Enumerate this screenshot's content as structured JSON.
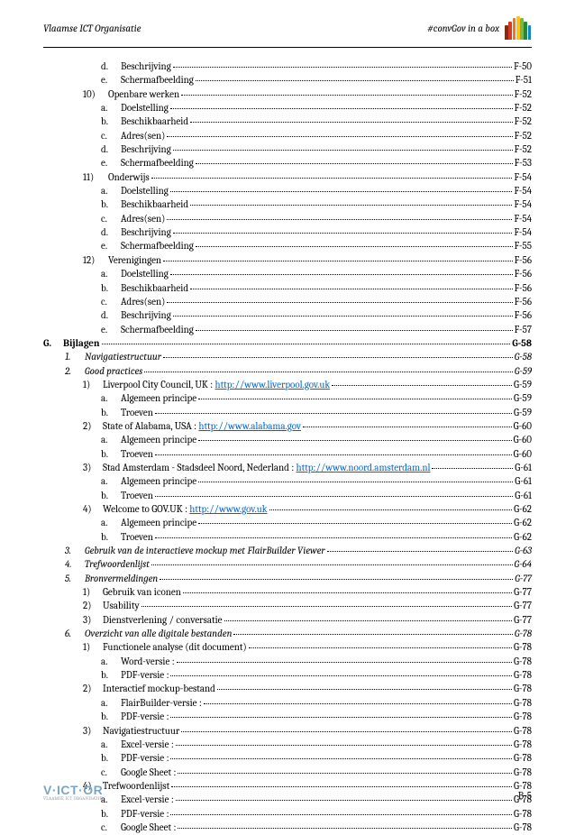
{
  "header": {
    "left": "Vlaamse ICT Organisatie",
    "right": "#convGov in a box"
  },
  "crayon_colors": [
    "#7b2d1a",
    "#d9381e",
    "#f07818",
    "#f5c518",
    "#7ab648",
    "#1f8a3b",
    "#1187c9"
  ],
  "crayon_heights": [
    16,
    20,
    24,
    26,
    24,
    20,
    16
  ],
  "toc": [
    {
      "level": 3,
      "marker": "d.",
      "text": "Beschrijving",
      "page": "F-50"
    },
    {
      "level": 3,
      "marker": "e.",
      "text": "Schermafbeelding",
      "page": "F-51"
    },
    {
      "level": 2,
      "marker": "10)",
      "text": "Openbare werken",
      "page": "F-52"
    },
    {
      "level": 3,
      "marker": "a.",
      "text": "Doelstelling",
      "page": "F-52"
    },
    {
      "level": 3,
      "marker": "b.",
      "text": "Beschikbaarheid",
      "page": "F-52"
    },
    {
      "level": 3,
      "marker": "c.",
      "text": "Adres(sen)",
      "page": "F-52"
    },
    {
      "level": 3,
      "marker": "d.",
      "text": "Beschrijving",
      "page": "F-52"
    },
    {
      "level": 3,
      "marker": "e.",
      "text": "Schermafbeelding",
      "page": "F-53"
    },
    {
      "level": 2,
      "marker": "11)",
      "text": "Onderwijs",
      "page": "F-54"
    },
    {
      "level": 3,
      "marker": "a.",
      "text": "Doelstelling",
      "page": "F-54"
    },
    {
      "level": 3,
      "marker": "b.",
      "text": "Beschikbaarheid",
      "page": "F-54"
    },
    {
      "level": 3,
      "marker": "c.",
      "text": "Adres(sen)",
      "page": "F-54"
    },
    {
      "level": 3,
      "marker": "d.",
      "text": "Beschrijving",
      "page": "F-54"
    },
    {
      "level": 3,
      "marker": "e.",
      "text": "Schermafbeelding",
      "page": "F-55"
    },
    {
      "level": 2,
      "marker": "12)",
      "text": "Verenigingen",
      "page": "F-56"
    },
    {
      "level": 3,
      "marker": "a.",
      "text": "Doelstelling",
      "page": "F-56"
    },
    {
      "level": 3,
      "marker": "b.",
      "text": "Beschikbaarheid",
      "page": "F-56"
    },
    {
      "level": 3,
      "marker": "c.",
      "text": "Adres(sen)",
      "page": "F-56"
    },
    {
      "level": 3,
      "marker": "d.",
      "text": "Beschrijving",
      "page": "F-56"
    },
    {
      "level": 3,
      "marker": "e.",
      "text": "Schermafbeelding",
      "page": "F-57"
    },
    {
      "level": 0,
      "marker": "G.",
      "text": "Bijlagen",
      "page": "G-58"
    },
    {
      "level": 1,
      "marker": "1.",
      "text": "Navigatiestructuur",
      "page": "G-58"
    },
    {
      "level": 1,
      "marker": "2.",
      "text": "Good practices",
      "page": "G-59"
    },
    {
      "level": 2,
      "marker": "1)",
      "text": "Liverpool City Council, UK : ",
      "link": "http://www.liverpool.gov.uk",
      "page": "G-59"
    },
    {
      "level": 3,
      "marker": "a.",
      "text": "Algemeen principe",
      "page": "G-59"
    },
    {
      "level": 3,
      "marker": "b.",
      "text": "Troeven",
      "page": "G-59"
    },
    {
      "level": 2,
      "marker": "2)",
      "text": "State of Alabama, USA : ",
      "link": "http://www.alabama.gov",
      "page": "G-60"
    },
    {
      "level": 3,
      "marker": "a.",
      "text": "Algemeen principe",
      "page": "G-60"
    },
    {
      "level": 3,
      "marker": "b.",
      "text": "Troeven",
      "page": "G-60"
    },
    {
      "level": 2,
      "marker": "3)",
      "text": "Stad Amsterdam - Stadsdeel Noord, Nederland : ",
      "link": "http://www.noord.amsterdam.nl",
      "page": "G-61"
    },
    {
      "level": 3,
      "marker": "a.",
      "text": "Algemeen principe",
      "page": "G-61"
    },
    {
      "level": 3,
      "marker": "b.",
      "text": "Troeven",
      "page": "G-61"
    },
    {
      "level": 2,
      "marker": "4)",
      "text": "Welcome to GOV.UK : ",
      "link": "http://www.gov.uk",
      "page": "G-62"
    },
    {
      "level": 3,
      "marker": "a.",
      "text": "Algemeen principe",
      "page": "G-62"
    },
    {
      "level": 3,
      "marker": "b.",
      "text": "Troeven",
      "page": "G-62"
    },
    {
      "level": 1,
      "marker": "3.",
      "text": "Gebruik van de interactieve mockup met FlairBuilder Viewer",
      "page": "G-63"
    },
    {
      "level": 1,
      "marker": "4.",
      "text": "Trefwoordenlijst",
      "page": "G-64"
    },
    {
      "level": 1,
      "marker": "5.",
      "text": "Bronvermeldingen",
      "page": "G-77"
    },
    {
      "level": 2,
      "marker": "1)",
      "text": "Gebruik van iconen",
      "page": "G-77"
    },
    {
      "level": 2,
      "marker": "2)",
      "text": "Usability",
      "page": "G-77"
    },
    {
      "level": 2,
      "marker": "3)",
      "text": "Dienstverlening / conversatie",
      "page": "G-77"
    },
    {
      "level": 1,
      "marker": "6.",
      "text": "Overzicht van alle digitale bestanden",
      "page": "G-78"
    },
    {
      "level": 2,
      "marker": "1)",
      "text": "Functionele analyse (dit document)",
      "page": "G-78"
    },
    {
      "level": 3,
      "marker": "a.",
      "text": "Word-versie :",
      "page": "G-78"
    },
    {
      "level": 3,
      "marker": "b.",
      "text": "PDF-versie :",
      "page": "G-78"
    },
    {
      "level": 2,
      "marker": "2)",
      "text": "Interactief mockup-bestand",
      "page": "G-78"
    },
    {
      "level": 3,
      "marker": "a.",
      "text": "FlairBuilder-versie :",
      "page": "G-78"
    },
    {
      "level": 3,
      "marker": "b.",
      "text": "PDF-versie :",
      "page": "G-78"
    },
    {
      "level": 2,
      "marker": "3)",
      "text": "Navigatiestructuur",
      "page": "G-78"
    },
    {
      "level": 3,
      "marker": "a.",
      "text": "Excel-versie :",
      "page": "G-78"
    },
    {
      "level": 3,
      "marker": "b.",
      "text": "PDF-versie :",
      "page": "G-78"
    },
    {
      "level": 3,
      "marker": "c.",
      "text": "Google Sheet :",
      "page": "G-78"
    },
    {
      "level": 2,
      "marker": "4)",
      "text": "Trefwoordenlijst",
      "page": "G-78"
    },
    {
      "level": 3,
      "marker": "a.",
      "text": "Excel-versie :",
      "page": "G-78"
    },
    {
      "level": 3,
      "marker": "b.",
      "text": "PDF-versie :",
      "page": "G-78"
    },
    {
      "level": 3,
      "marker": "c.",
      "text": "Google Sheet :",
      "page": "G-78"
    }
  ],
  "footer": {
    "logo_main": "V·ICT·OR",
    "logo_sub": "VLAAMSE ICT ORGANISATIE",
    "page": "B-5"
  }
}
